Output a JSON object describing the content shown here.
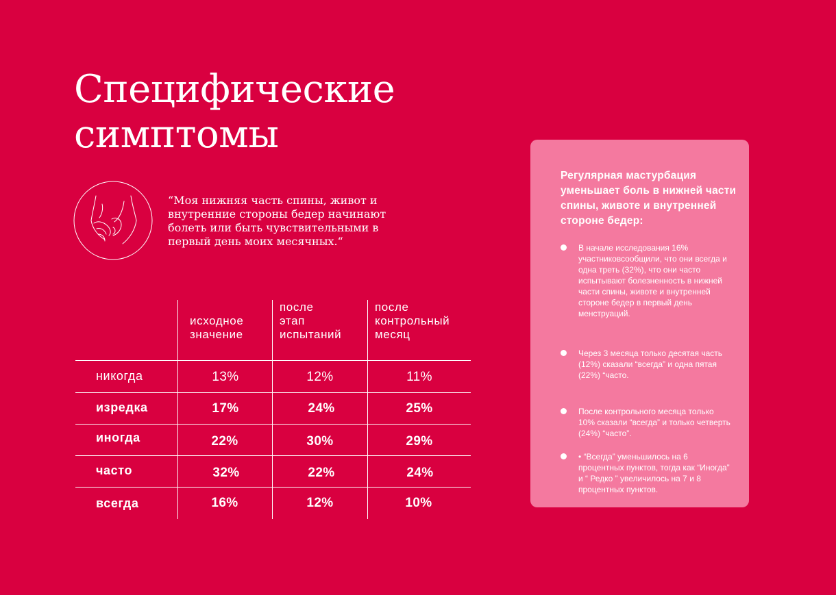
{
  "title": {
    "line1": "Специфические",
    "line2": "симптомы"
  },
  "quote": "“Моя нижняя часть спины, живот и внутренние стороны бедер начинают болеть или быть чувствительными в первый день моих месячных.“",
  "table": {
    "columns": [
      {
        "line1": "исходное",
        "line2": "значение",
        "line3": ""
      },
      {
        "line1": "после",
        "line2": "этап",
        "line3": "испытаний"
      },
      {
        "line1": "после",
        "line2": "контрольный",
        "line3": "месяц"
      }
    ],
    "rows": [
      {
        "label": "никогда",
        "values": [
          "13%",
          "12%",
          "11%"
        ]
      },
      {
        "label": "изредка",
        "values": [
          "17%",
          "24%",
          "25%"
        ]
      },
      {
        "label": "иногда",
        "values": [
          "22%",
          "30%",
          "29%"
        ]
      },
      {
        "label": "часто",
        "values": [
          "32%",
          "22%",
          "24%"
        ]
      },
      {
        "label": "всегда",
        "values": [
          "16%",
          "12%",
          "10%"
        ]
      }
    ]
  },
  "card": {
    "title": "Регулярная мастурбация уменьшает боль в нижней части спины, животе и внутренней стороне бедер:",
    "bullets": [
      "В начале исследования 16% участниковсообщили, что они всегда и одна треть (32%), что они часто испытывают болезненность в нижней части спины, животе и внутренней стороне бедер в первый день менструаций.",
      "Через 3 месяца только десятая часть (12%) сказали “всегда” и одна пятая (22%) “часто.",
      "После контрольного месяца только 10% сказали “всегда” и только четверть (24%) “часто”.",
      "• “Всегда” уменьшилось на 6 процентных пунктов, тогда как “Иногда” и “ Редко ” увеличилось на 7 и 8 процентных пунктов."
    ]
  },
  "colors": {
    "background": "#d90040",
    "card": "#f4799f",
    "text": "#ffffff"
  },
  "icons": {
    "illustration": "body-hands-icon"
  }
}
